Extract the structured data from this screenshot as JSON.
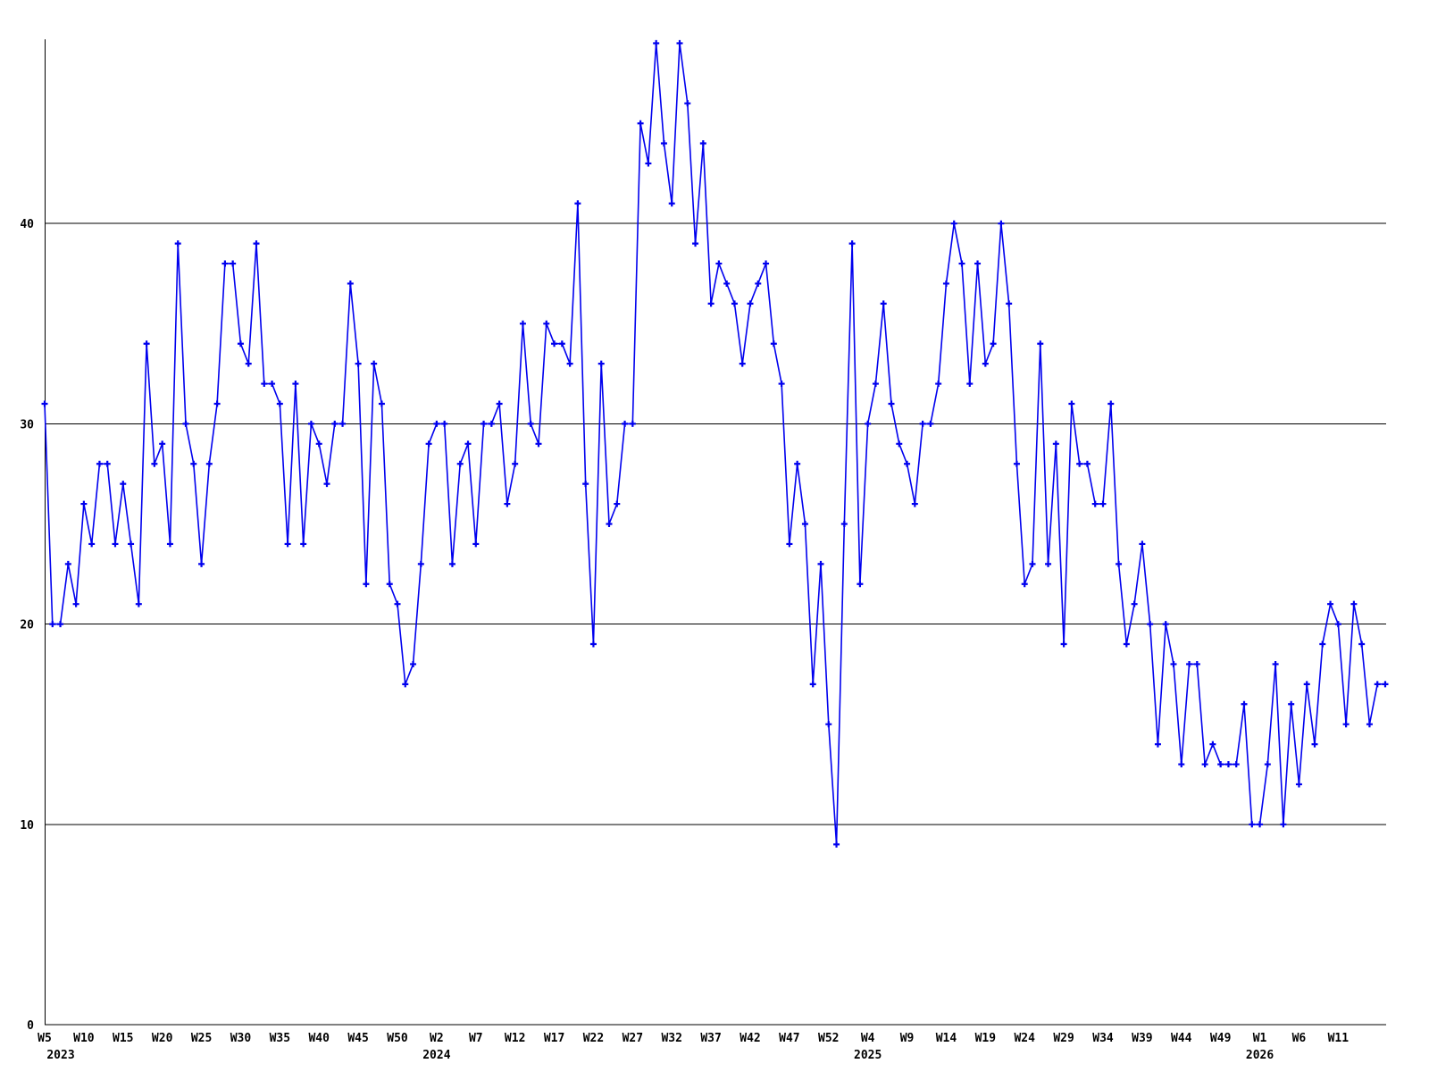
{
  "chart_data": {
    "type": "line",
    "title": "",
    "xlabel": "",
    "ylabel": "",
    "legend": "none",
    "grid": "horizontal",
    "line_color": "#0000ee",
    "marker": "plus",
    "axis_color": "#000000",
    "background_color": "#ffffff",
    "ylim": [
      0,
      49.5
    ],
    "yticks": [
      0,
      10,
      20,
      30,
      40
    ],
    "ytick_labels": [
      "0",
      "10",
      "20",
      "30",
      "40"
    ],
    "x_tick_every": 5,
    "x_tick_labels": [
      "W5",
      "W10",
      "W15",
      "W20",
      "W25",
      "W30",
      "W35",
      "W40",
      "W45",
      "W50",
      "W2",
      "W7",
      "W12",
      "W17",
      "W22",
      "W27",
      "W32",
      "W37",
      "W42",
      "W47",
      "W52",
      "W4",
      "W9",
      "W14",
      "W19",
      "W24",
      "W29",
      "W34",
      "W39",
      "W44",
      "W49",
      "W1",
      "W6",
      "W11"
    ],
    "year_labels": [
      {
        "text": "2023",
        "tick_index": 0
      },
      {
        "text": "2024",
        "tick_index": 10
      },
      {
        "text": "2025",
        "tick_index": 21
      },
      {
        "text": "2026",
        "tick_index": 31
      }
    ],
    "series": [
      {
        "name": "weekly-values",
        "years": [
          {
            "year": 2023,
            "start_week": 5,
            "values": [
              31,
              20,
              20,
              23,
              21,
              26,
              24,
              28,
              28,
              24,
              27,
              24,
              21,
              34,
              28,
              29,
              24,
              39,
              30,
              28,
              23,
              28,
              31,
              38,
              38,
              34,
              33,
              39,
              32,
              32,
              31,
              24,
              32,
              24,
              30,
              29,
              27,
              30,
              30,
              37,
              33,
              22,
              33,
              31,
              22,
              21,
              17,
              18,
              23
            ]
          },
          {
            "year": 2024,
            "start_week": 1,
            "values": [
              29,
              30,
              30,
              23,
              28,
              29,
              24,
              30,
              30,
              31,
              26,
              28,
              35,
              30,
              29,
              35,
              34,
              34,
              33,
              41,
              27,
              19,
              33,
              25,
              26,
              30,
              30,
              45,
              43,
              49,
              44,
              41,
              49,
              46,
              39,
              44,
              36,
              38,
              37,
              36,
              33,
              36,
              37,
              38,
              34,
              32,
              24,
              28,
              25,
              17,
              23,
              15,
              9
            ]
          },
          {
            "year": 2025,
            "start_week": 1,
            "values": [
              25,
              39,
              22,
              30,
              32,
              36,
              31,
              29,
              28,
              26,
              30,
              30,
              32,
              37,
              40,
              38,
              32,
              38,
              33,
              34,
              40,
              36,
              28,
              22,
              23,
              34,
              23,
              29,
              19,
              31,
              28,
              28,
              26,
              26,
              31,
              23,
              19,
              21,
              24,
              20,
              14,
              20,
              18,
              13,
              18,
              18,
              13,
              14,
              13,
              13,
              13,
              16,
              10
            ]
          },
          {
            "year": 2026,
            "start_week": 1,
            "values": [
              10,
              13,
              18,
              10,
              16,
              12,
              17,
              14,
              19,
              21,
              20,
              15,
              21,
              19,
              15,
              17,
              17
            ]
          }
        ]
      }
    ]
  }
}
